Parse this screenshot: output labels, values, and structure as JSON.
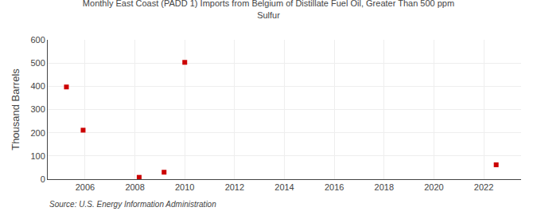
{
  "chart_data": {
    "type": "scatter",
    "title": "Monthly East Coast (PADD 1) Imports from Belgium of Distillate Fuel Oil, Greater Than 500 ppm\nSulfur",
    "ylabel": "Thousand Barrels",
    "annotations": [
      "Source: U.S. Energy Information Administration"
    ],
    "x": [
      2005.25,
      2005.92,
      2008.17,
      2009.17,
      2010.0,
      2022.5
    ],
    "values": [
      397,
      211,
      8,
      30,
      503,
      62
    ],
    "color": "#cc0000",
    "marker": "square",
    "xlim": [
      2004.5,
      2023.5
    ],
    "ylim": [
      0,
      600
    ],
    "xticks": [
      2006,
      2008,
      2010,
      2012,
      2014,
      2016,
      2018,
      2020,
      2022
    ],
    "yticks": [
      0,
      100,
      200,
      300,
      400,
      500,
      600
    ],
    "grid": true
  }
}
